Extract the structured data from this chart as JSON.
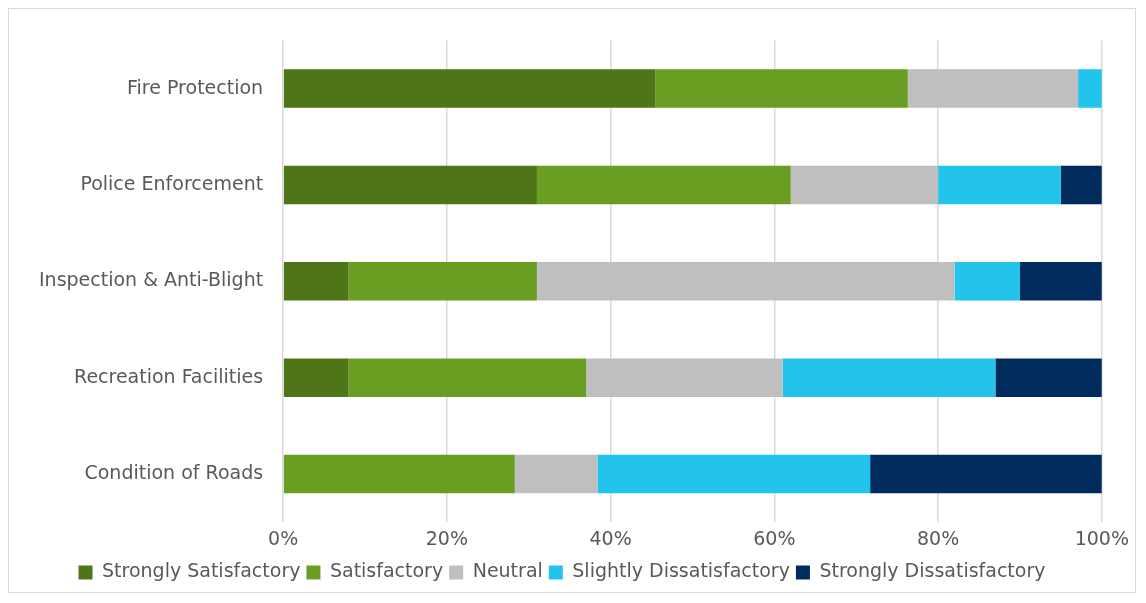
{
  "chart_data": {
    "type": "bar",
    "orientation": "horizontal",
    "stacked": true,
    "categories": [
      "Fire Protection",
      "Police Enforcement",
      "Inspection & Anti-Blight",
      "Recreation Facilities",
      "Condition of Roads"
    ],
    "series": [
      {
        "name": "Strongly Satisfactory",
        "color": "#4e7518",
        "values": [
          45.5,
          31,
          8,
          8,
          0
        ]
      },
      {
        "name": "Satisfactory",
        "color": "#6a9e22",
        "values": [
          30.8,
          31,
          23,
          29,
          28.3
        ]
      },
      {
        "name": "Neutral",
        "color": "#bfbfbf",
        "values": [
          20.8,
          18,
          51,
          24,
          10.1
        ]
      },
      {
        "name": "Slightly Dissatisfactory",
        "color": "#22c4ec",
        "values": [
          2.9,
          15,
          8,
          26,
          33.3
        ]
      },
      {
        "name": "Strongly Dissatisfactory",
        "color": "#002b5c",
        "values": [
          0,
          5,
          10,
          13,
          28.3
        ]
      }
    ],
    "xlim": [
      0,
      100
    ],
    "xticks": [
      {
        "value": 0,
        "label": "0%"
      },
      {
        "value": 20,
        "label": "20%"
      },
      {
        "value": 40,
        "label": "40%"
      },
      {
        "value": 60,
        "label": "60%"
      },
      {
        "value": 80,
        "label": "80%"
      },
      {
        "value": 100,
        "label": "100%"
      }
    ],
    "grid": "x",
    "legend": "bottom"
  }
}
